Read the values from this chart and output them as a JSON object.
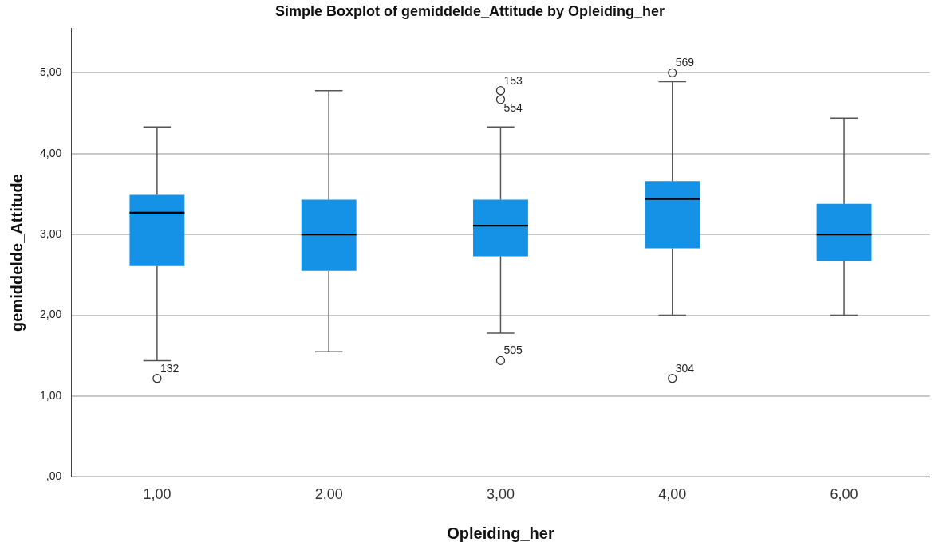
{
  "chart_data": {
    "type": "box",
    "title": "Simple Boxplot of gemiddelde_Attitude by Opleiding_her",
    "xlabel": "Opleiding_her",
    "ylabel": "gemiddelde_Attitude",
    "categories": [
      "1,00",
      "2,00",
      "3,00",
      "4,00",
      "6,00"
    ],
    "color": "#1591e6",
    "boxes": [
      {
        "low": 1.44,
        "q1": 2.61,
        "median": 3.27,
        "q3": 3.49,
        "high": 4.33,
        "outliers": [
          1.22
        ]
      },
      {
        "low": 1.55,
        "q1": 2.55,
        "median": 3.0,
        "q3": 3.43,
        "high": 4.78
      },
      {
        "low": 1.78,
        "q1": 2.73,
        "median": 3.11,
        "q3": 3.43,
        "high": 4.33,
        "outliers": [
          4.78,
          4.67,
          1.44
        ]
      },
      {
        "low": 2.0,
        "q1": 2.83,
        "median": 3.44,
        "q3": 3.66,
        "high": 4.89,
        "outliers": [
          5.0,
          1.22
        ]
      },
      {
        "low": 2.0,
        "q1": 2.67,
        "median": 3.0,
        "q3": 3.38,
        "high": 4.44
      }
    ],
    "annotations": [
      "132",
      "153",
      "554",
      "505",
      "569",
      "304"
    ],
    "ylim": [
      0,
      5.55
    ],
    "yticks": [
      {
        "value": 0,
        "label": ",00"
      },
      {
        "value": 1,
        "label": "1,00"
      },
      {
        "value": 2,
        "label": "2,00"
      },
      {
        "value": 3,
        "label": "3,00"
      },
      {
        "value": 4,
        "label": "4,00"
      },
      {
        "value": 5,
        "label": "5,00"
      }
    ],
    "grid": "y",
    "legend": false,
    "marker": "circle"
  }
}
